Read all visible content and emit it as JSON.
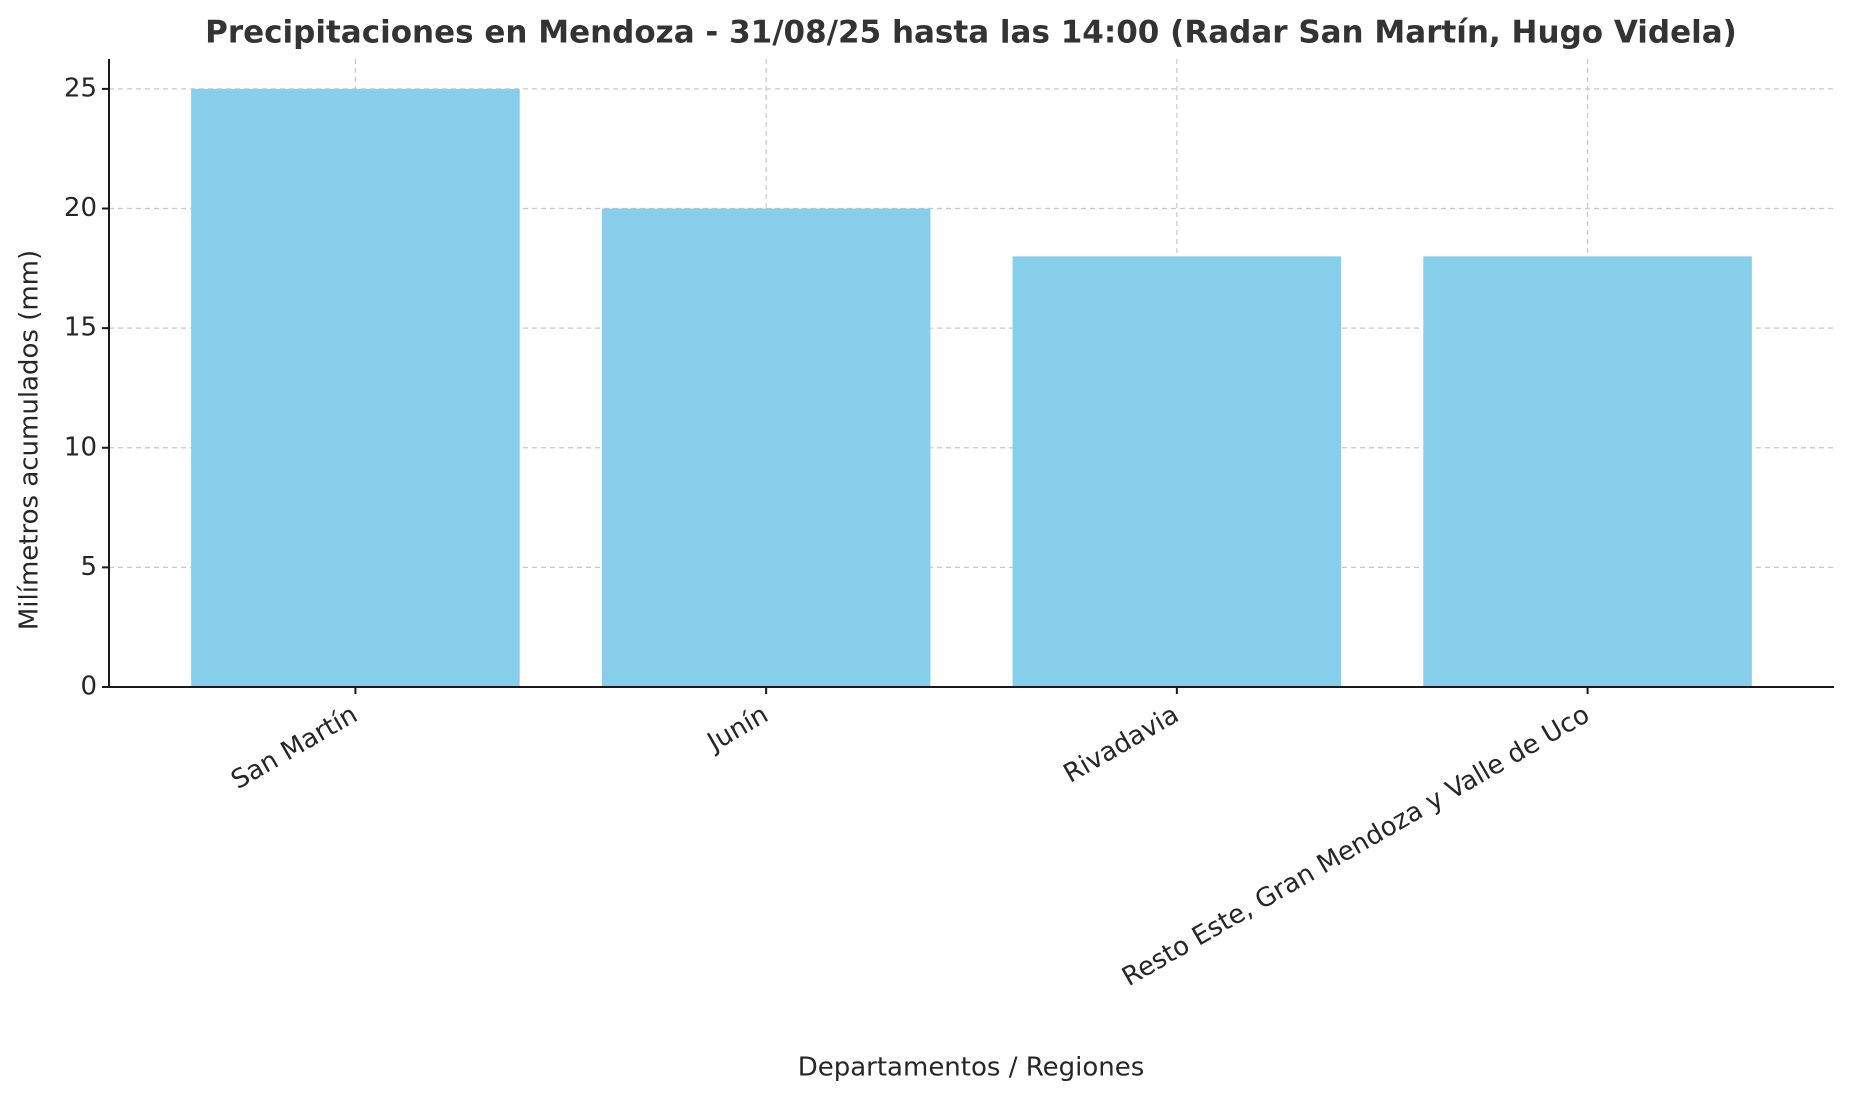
{
  "chart_data": {
    "type": "bar",
    "title": "Precipitaciones en Mendoza - 31/08/25 hasta las 14:00 (Radar San Martín, Hugo Videla)",
    "x_label": "Departamentos / Regiones",
    "y_label": "Milímetros acumulados (mm)",
    "categories": [
      "San Martín",
      "Junín",
      "Rivadavia",
      "Resto Este, Gran Mendoza y Valle de Uco"
    ],
    "values": [
      25,
      20,
      18,
      18
    ],
    "color": "#87ceeb",
    "ylim": [
      0,
      26.25
    ],
    "yticks": [
      0,
      5,
      10,
      15,
      20,
      25
    ],
    "grid": true
  }
}
